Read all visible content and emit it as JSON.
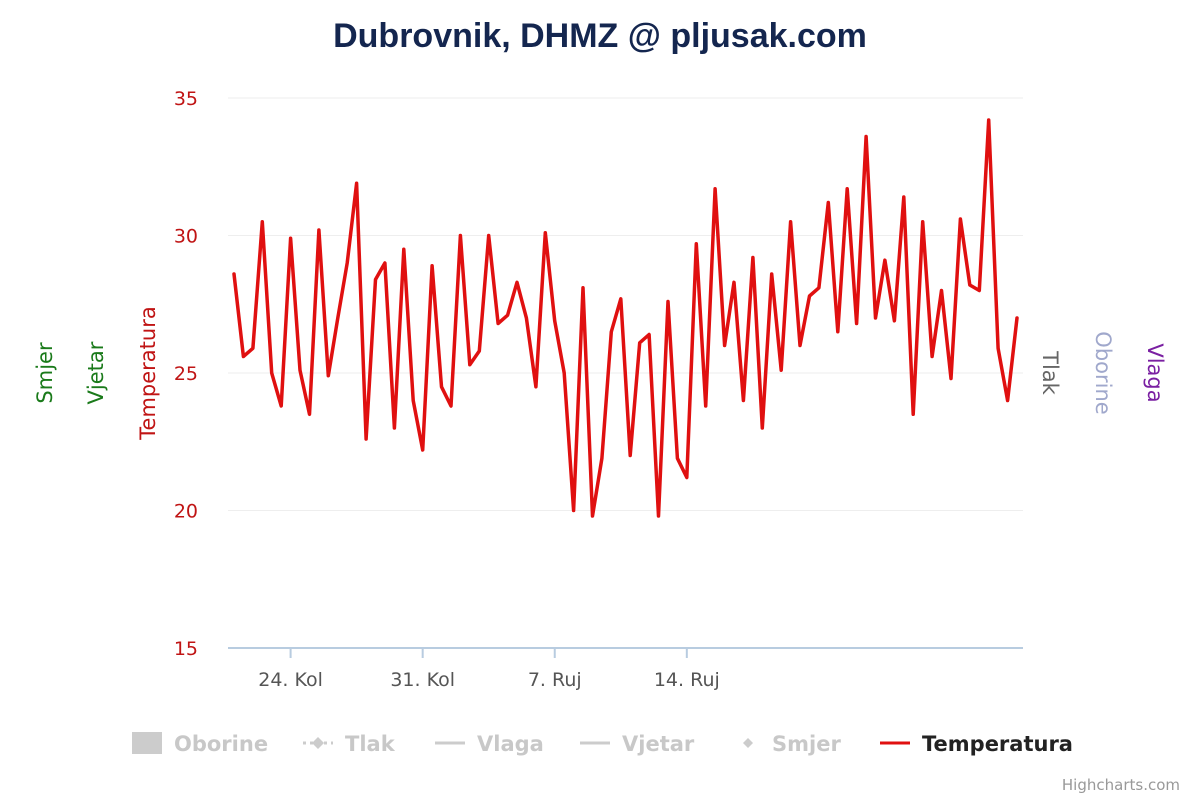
{
  "chart_data": {
    "type": "line",
    "title": "Dubrovnik, DHMZ @ pljusak.com",
    "x_ticks": [
      "24. Kol",
      "31. Kol",
      "7. Ruj",
      "14. Ruj"
    ],
    "ylim": [
      15,
      35
    ],
    "y_ticks": [
      15,
      20,
      25,
      30,
      35
    ],
    "axis_titles": {
      "left": [
        {
          "label": "Smjer",
          "color": "#1a7a1a"
        },
        {
          "label": "Vjetar",
          "color": "#1a7a1a"
        },
        {
          "label": "Temperatura",
          "color": "#c01414"
        }
      ],
      "right": [
        {
          "label": "Tlak",
          "color": "#666666"
        },
        {
          "label": "Oborine",
          "color": "#a0a8cc"
        },
        {
          "label": "Vlaga",
          "color": "#7a1fa2"
        }
      ]
    },
    "legend": [
      {
        "name": "Oborine",
        "symbol": "box",
        "active": false
      },
      {
        "name": "Tlak",
        "symbol": "dash-diamond",
        "active": false
      },
      {
        "name": "Vlaga",
        "symbol": "line",
        "active": false
      },
      {
        "name": "Vjetar",
        "symbol": "line",
        "active": false
      },
      {
        "name": "Smjer",
        "symbol": "diamond",
        "active": false
      },
      {
        "name": "Temperatura",
        "symbol": "line",
        "active": true,
        "color": "#e01010"
      }
    ],
    "credits": "Highcharts.com",
    "series": [
      {
        "name": "Temperatura",
        "color": "#e01010",
        "x_start": "2019-08-21",
        "x_step_days": 0.5,
        "values": [
          28.6,
          25.6,
          25.9,
          30.5,
          25.0,
          23.8,
          29.9,
          25.1,
          23.5,
          30.2,
          24.9,
          27.0,
          29.0,
          31.9,
          22.6,
          28.4,
          29.0,
          23.0,
          29.5,
          24.0,
          22.2,
          28.9,
          24.5,
          23.8,
          30.0,
          25.3,
          25.8,
          30.0,
          26.8,
          27.1,
          28.3,
          27.0,
          24.5,
          30.1,
          26.9,
          25.0,
          20.0,
          28.1,
          19.8,
          21.9,
          26.5,
          27.7,
          22.0,
          26.1,
          26.4,
          19.8,
          27.6,
          21.9,
          21.2,
          29.7,
          23.8,
          31.7,
          26.0,
          28.3,
          24.0,
          29.2,
          23.0,
          28.6,
          25.1,
          30.5,
          26.0,
          27.8,
          28.1,
          31.2,
          26.5,
          31.7,
          26.8,
          33.6,
          27.0,
          29.1,
          26.9,
          31.4,
          23.5,
          30.5,
          25.6,
          28.0,
          24.8,
          30.6,
          28.2,
          28.0,
          34.2,
          25.9,
          24.0,
          27.0
        ]
      }
    ]
  }
}
